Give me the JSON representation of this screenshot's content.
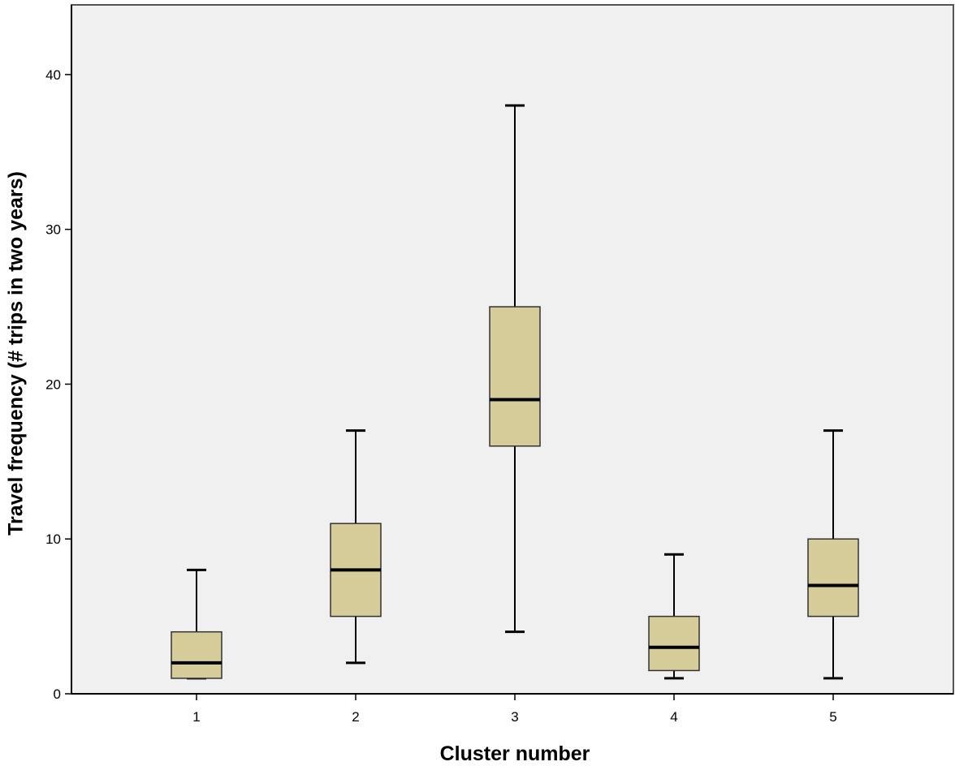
{
  "chart_data": {
    "type": "boxplot",
    "xlabel": "Cluster number",
    "ylabel": "Travel frequency (# trips in two years)",
    "categories": [
      "1",
      "2",
      "3",
      "4",
      "5"
    ],
    "ylim": [
      0,
      44.5
    ],
    "yticks": [
      0,
      10,
      20,
      30,
      40
    ],
    "grid": false,
    "boxes": [
      {
        "category": "1",
        "min": 1,
        "q1": 1,
        "median": 2,
        "q3": 4,
        "max": 8
      },
      {
        "category": "2",
        "min": 2,
        "q1": 5,
        "median": 8,
        "q3": 11,
        "max": 17
      },
      {
        "category": "3",
        "min": 4,
        "q1": 16,
        "median": 19,
        "q3": 25,
        "max": 38
      },
      {
        "category": "4",
        "min": 1,
        "q1": 1.5,
        "median": 3,
        "q3": 5,
        "max": 9
      },
      {
        "category": "5",
        "min": 1,
        "q1": 5,
        "median": 7,
        "q3": 10,
        "max": 17
      }
    ],
    "colors": {
      "plot_background": "#f0f0f0",
      "box_fill": "#d5cc9a",
      "stroke": "#000000"
    }
  }
}
